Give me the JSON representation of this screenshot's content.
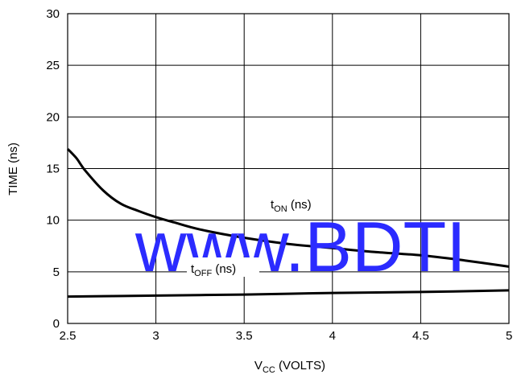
{
  "chart_data": {
    "type": "line",
    "title": "",
    "xlabel": {
      "main": "V",
      "sub": "CC",
      "suffix": " (VOLTS)"
    },
    "ylabel": "TIME (ns)",
    "xlim": [
      2.5,
      5
    ],
    "ylim": [
      0,
      30
    ],
    "x_ticks": [
      2.5,
      3,
      3.5,
      4,
      4.5,
      5
    ],
    "x_tick_labels": [
      "2.5",
      "3",
      "3.5",
      "4",
      "4.5",
      "5"
    ],
    "y_ticks": [
      0,
      5,
      10,
      15,
      20,
      25,
      30
    ],
    "y_tick_labels": [
      "0",
      "5",
      "10",
      "15",
      "20",
      "25",
      "30"
    ],
    "grid": true,
    "series": [
      {
        "name": {
          "main": "t",
          "sub": "ON",
          "suffix": " (ns)"
        },
        "color": "#000000",
        "x": [
          2.5,
          2.55,
          2.6,
          2.7,
          2.8,
          2.9,
          3.0,
          3.1,
          3.25,
          3.5,
          3.75,
          4.0,
          4.25,
          4.5,
          4.75,
          5.0
        ],
        "y": [
          16.9,
          16.0,
          14.8,
          12.9,
          11.6,
          10.9,
          10.3,
          9.8,
          9.1,
          8.3,
          7.7,
          7.3,
          6.9,
          6.6,
          6.1,
          5.5
        ]
      },
      {
        "name": {
          "main": "t",
          "sub": "OFF",
          "suffix": " (ns)"
        },
        "color": "#000000",
        "x": [
          2.5,
          3.0,
          3.5,
          4.0,
          4.5,
          5.0
        ],
        "y": [
          2.6,
          2.7,
          2.8,
          2.95,
          3.05,
          3.2
        ]
      }
    ],
    "watermark": "www.BDTI"
  }
}
